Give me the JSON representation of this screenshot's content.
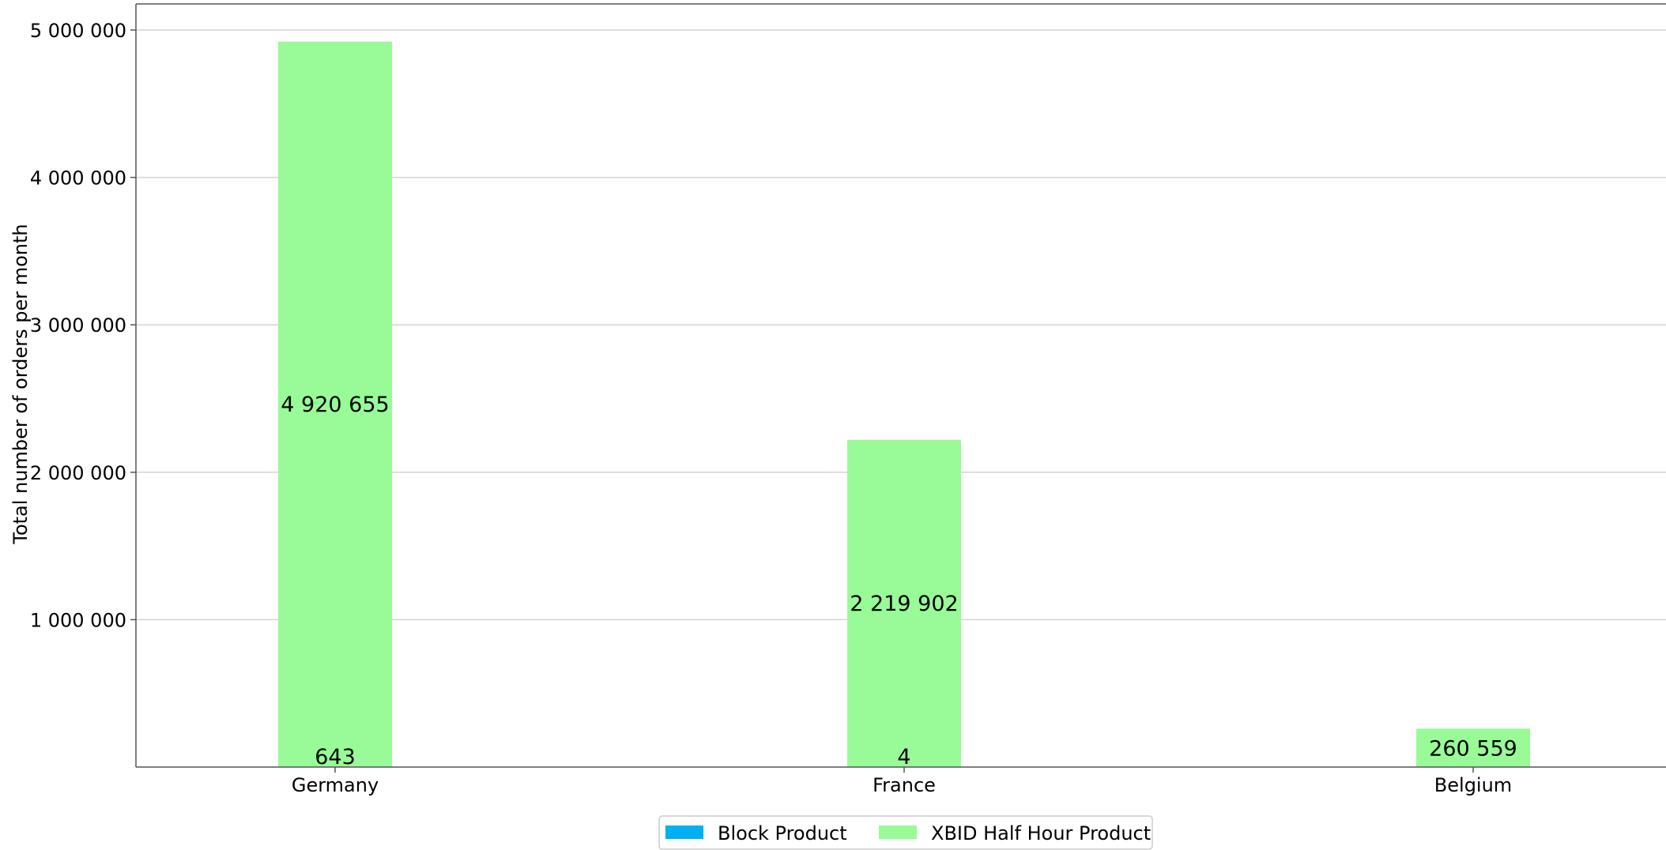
{
  "chart_data": {
    "type": "bar",
    "title": "",
    "xlabel": "",
    "ylabel": "Total number of orders per month",
    "categories": [
      "Germany",
      "France",
      "Belgium"
    ],
    "series": [
      {
        "name": "Block Product",
        "color": "#00b0f0",
        "values": [
          643,
          4,
          0
        ],
        "labels": [
          "643",
          "4",
          ""
        ]
      },
      {
        "name": "XBID Half Hour Product",
        "color": "#98fb98",
        "values": [
          4920655,
          2219902,
          260559
        ],
        "labels": [
          "4 920 655",
          "2 219 902",
          "260 559"
        ]
      }
    ],
    "ylim": [
      0,
      5000000
    ],
    "yticks": [
      1000000,
      2000000,
      3000000,
      4000000,
      5000000
    ],
    "ytick_labels": [
      "1 000 000",
      "2 000 000",
      "3 000 000",
      "4 000 000",
      "5 000 000"
    ],
    "grid": true,
    "grid_axis": "y",
    "legend_position": "bottom-center"
  }
}
